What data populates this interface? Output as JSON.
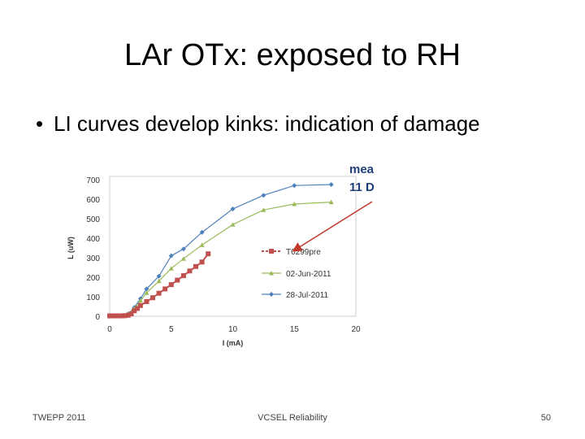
{
  "slide": {
    "title": "LAr OTx: exposed to RH",
    "bullet": "LI curves develop kinks: indication of damage",
    "callout": [
      "mea",
      "11 D"
    ],
    "footer": {
      "left": "TWEPP 2011",
      "center": "VCSEL Reliability",
      "right": "50"
    }
  },
  "chart_data": {
    "type": "line",
    "xlabel": "I (mA)",
    "ylabel": "L (uW)",
    "xlim": [
      0,
      20
    ],
    "ylim": [
      0,
      700
    ],
    "xticks": [
      0,
      5,
      10,
      15,
      20
    ],
    "yticks": [
      0,
      100,
      200,
      300,
      400,
      500,
      600,
      700
    ],
    "legend_position": "right",
    "series": [
      {
        "name": "T0299pre",
        "color": "#c0504d",
        "marker": "square",
        "x": [
          0,
          0.25,
          0.5,
          0.75,
          1,
          1.25,
          1.5,
          1.75,
          2,
          2.25,
          2.5,
          3,
          3.5,
          4,
          4.5,
          5,
          5.5,
          6,
          6.5,
          7,
          7.5,
          8
        ],
        "y": [
          2,
          2,
          2,
          2,
          2,
          3,
          5,
          12,
          28,
          40,
          55,
          75,
          95,
          118,
          140,
          162,
          185,
          208,
          232,
          255,
          278,
          320
        ]
      },
      {
        "name": "02-Jun-2011",
        "color": "#9bbb59",
        "marker": "triangle",
        "x": [
          0,
          1,
          1.5,
          2,
          2.5,
          3,
          4,
          5,
          6,
          7.5,
          10,
          12.5,
          15,
          18
        ],
        "y": [
          0,
          2,
          10,
          40,
          80,
          120,
          180,
          245,
          295,
          365,
          470,
          545,
          575,
          585
        ]
      },
      {
        "name": "28-Jul-2011",
        "color": "#4f81bd",
        "marker": "diamond",
        "x": [
          0,
          1,
          1.5,
          2,
          2.5,
          3,
          4,
          5,
          6,
          7.5,
          10,
          12.5,
          15,
          18
        ],
        "y": [
          0,
          2,
          12,
          45,
          90,
          140,
          205,
          310,
          345,
          430,
          550,
          620,
          670,
          675
        ]
      }
    ]
  }
}
